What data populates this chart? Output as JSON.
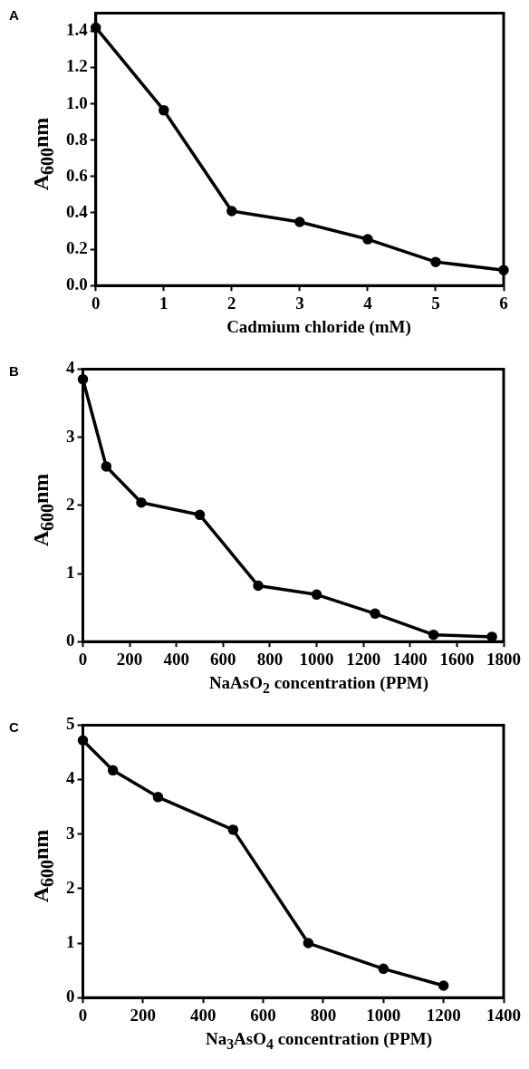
{
  "chart_data": [
    {
      "type": "line",
      "title": "A",
      "xlabel": "Cadmium chloride (mM)",
      "ylabel": "A$_{600}$nm",
      "x": [
        0,
        1,
        2,
        3,
        4,
        5,
        6
      ],
      "series": [
        {
          "color": "#000000",
          "values": [
            1.42,
            0.965,
            0.41,
            0.35,
            0.255,
            0.13,
            0.085
          ],
          "errors": [
            0.015,
            0.02,
            0.01,
            0.01,
            0.015,
            0.01,
            0.01
          ]
        }
      ],
      "xlim": [
        0,
        6
      ],
      "xticks": [
        0,
        1,
        2,
        3,
        4,
        5,
        6
      ],
      "ylim": [
        0,
        1.5
      ],
      "yticks": [
        {
          "value": 0,
          "label": "0.0"
        },
        0.2,
        0.4,
        0.6,
        0.8,
        {
          "value": 1,
          "label": "1.0"
        },
        1.2,
        1.4
      ],
      "grid": false,
      "legend": false,
      "marker": "circle",
      "line_style": "solid"
    },
    {
      "type": "line",
      "title": "B",
      "xlabel": "NaAsO$_{2}$ concentration (PPM)",
      "ylabel": "A$_{600}$nm",
      "x": [
        0,
        100,
        250,
        500,
        750,
        1000,
        1250,
        1500,
        1750
      ],
      "series": [
        {
          "color": "#000000",
          "values": [
            3.85,
            2.57,
            2.04,
            1.86,
            0.82,
            0.69,
            0.41,
            0.1,
            0.07
          ]
        }
      ],
      "xlim": [
        0,
        1800
      ],
      "xticks": [
        0,
        200,
        400,
        600,
        800,
        1000,
        1200,
        1400,
        1600,
        1800
      ],
      "ylim": [
        0,
        4
      ],
      "yticks": [
        0,
        1,
        2,
        3,
        4
      ],
      "grid": false,
      "legend": false,
      "marker": "circle",
      "line_style": "solid"
    },
    {
      "type": "line",
      "title": "C",
      "xlabel": "Na$_{3}$AsO$_{4}$ concentration (PPM)",
      "ylabel": "A$_{600}$nm",
      "x": [
        0,
        100,
        250,
        500,
        750,
        1000,
        1200
      ],
      "series": [
        {
          "color": "#000000",
          "values": [
            4.72,
            4.17,
            3.68,
            3.08,
            1.0,
            0.53,
            0.22
          ]
        }
      ],
      "xlim": [
        0,
        1400
      ],
      "xticks": [
        0,
        200,
        400,
        600,
        800,
        1000,
        1200,
        1400
      ],
      "ylim": [
        0,
        5
      ],
      "yticks": [
        0,
        1,
        2,
        3,
        4,
        5
      ],
      "grid": false,
      "legend": false,
      "marker": "circle",
      "line_style": "solid"
    }
  ]
}
